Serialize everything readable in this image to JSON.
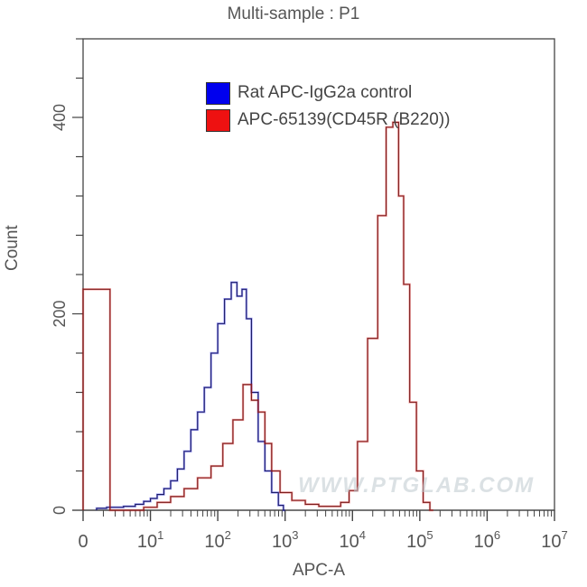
{
  "chart_data": {
    "type": "line",
    "title": "Multi-sample : P1",
    "xlabel": "APC-A",
    "ylabel": "Count",
    "xscale": "log (biexponential, 0 at left)",
    "xlim_decades": [
      0,
      7
    ],
    "x_ticks": [
      "0",
      "10^1",
      "10^2",
      "10^3",
      "10^4",
      "10^5",
      "10^6",
      "10^7"
    ],
    "ylim": [
      0,
      480
    ],
    "y_ticks": [
      0,
      200,
      400
    ],
    "grid": false,
    "legend_position": "upper center",
    "series": [
      {
        "name": "Rat APC-IgG2a control",
        "color": "#0000ee",
        "x_log10": [
          0.2,
          0.5,
          0.7,
          0.85,
          0.95,
          1.05,
          1.15,
          1.25,
          1.35,
          1.45,
          1.55,
          1.65,
          1.75,
          1.85,
          1.95,
          2.05,
          2.15,
          2.25,
          2.32,
          2.4,
          2.45,
          2.55,
          2.65,
          2.75,
          2.85,
          2.95,
          3.0
        ],
        "values": [
          2,
          3,
          4,
          6,
          9,
          12,
          16,
          22,
          30,
          42,
          60,
          82,
          100,
          125,
          160,
          190,
          215,
          232,
          218,
          225,
          195,
          120,
          70,
          40,
          18,
          5,
          0
        ]
      },
      {
        "name": "APC-65139(CD45R (B220))",
        "color": "#dd0000",
        "x_log10": [
          0.0,
          0.8,
          1.0,
          1.2,
          1.4,
          1.6,
          1.8,
          2.0,
          2.15,
          2.3,
          2.45,
          2.55,
          2.65,
          2.75,
          2.85,
          3.0,
          3.2,
          3.4,
          3.6,
          3.75,
          3.9,
          4.0,
          4.15,
          4.3,
          4.45,
          4.55,
          4.65,
          4.72,
          4.8,
          4.9,
          5.0,
          5.1,
          5.2
        ],
        "values": [
          225,
          0,
          3,
          8,
          14,
          22,
          33,
          45,
          68,
          92,
          128,
          112,
          100,
          68,
          40,
          18,
          10,
          6,
          4,
          4,
          8,
          20,
          70,
          175,
          300,
          390,
          395,
          320,
          230,
          110,
          40,
          8,
          0
        ]
      }
    ],
    "annotations": [
      "WWW.PTGLAB.COM watermark"
    ]
  },
  "legend": {
    "items": [
      {
        "label": "Rat APC-IgG2a control",
        "color": "#0000ee"
      },
      {
        "label": "APC-65139(CD45R (B220))",
        "color": "#ee1111"
      }
    ]
  },
  "axes": {
    "x_tick_labels": [
      {
        "base": "0",
        "exp": ""
      },
      {
        "base": "10",
        "exp": "1"
      },
      {
        "base": "10",
        "exp": "2"
      },
      {
        "base": "10",
        "exp": "3"
      },
      {
        "base": "10",
        "exp": "4"
      },
      {
        "base": "10",
        "exp": "5"
      },
      {
        "base": "10",
        "exp": "6"
      },
      {
        "base": "10",
        "exp": "7"
      }
    ],
    "y_tick_labels": [
      "0",
      "200",
      "400"
    ]
  },
  "watermark": "WWW.PTGLAB.COM"
}
